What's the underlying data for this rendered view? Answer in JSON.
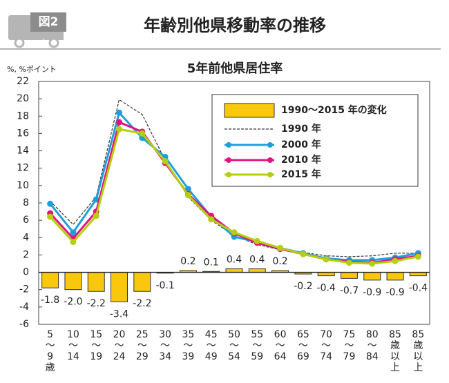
{
  "header": {
    "badge": "図2",
    "title": "年齢別他県移動率の推移"
  },
  "chart_data": {
    "type": "combo",
    "title": "5年前他県居住率",
    "y_label": "%, %ポイント",
    "categories": [
      "5\n〜\n9\n歳",
      "10\n〜\n14",
      "15\n〜\n19",
      "20\n〜\n24",
      "25\n〜\n29",
      "30\n〜\n34",
      "35\n〜\n39",
      "45\n〜\n49",
      "50\n〜\n54",
      "55\n〜\n59",
      "60\n〜\n64",
      "65\n〜\n69",
      "70\n〜\n74",
      "75\n〜\n79",
      "80\n〜\n84",
      "85\n歳\n以\n上",
      "85\n歳\n以\n上"
    ],
    "series": [
      {
        "name": "1990〜2015 年の変化",
        "type": "bar",
        "color": "#f9c80e",
        "values": [
          -1.8,
          -2.0,
          -2.2,
          -3.4,
          -2.2,
          -0.1,
          0.2,
          0.1,
          0.4,
          0.4,
          0.2,
          -0.2,
          -0.4,
          -0.7,
          -0.9,
          -0.9,
          -0.4
        ],
        "value_labels": [
          "-1.8",
          "-2.0",
          "-2.2",
          "-3.4",
          "-2.2",
          "-0.1",
          "0.2",
          "0.1",
          "0.4",
          "0.4",
          "0.2",
          "-0.2",
          "-0.4",
          "-0.7",
          "-0.9",
          "-0.9",
          "-0.4"
        ]
      },
      {
        "name": "1990 年",
        "type": "line",
        "dashed": true,
        "markers": false,
        "color": "#333333",
        "values": [
          8.2,
          5.5,
          8.7,
          19.9,
          18.2,
          12.9,
          8.7,
          6.0,
          4.2,
          3.2,
          2.6,
          2.3,
          1.9,
          1.8,
          1.9,
          2.2,
          2.2
        ]
      },
      {
        "name": "2000 年",
        "type": "line",
        "dashed": false,
        "markers": true,
        "color": "#1e9fdc",
        "values": [
          7.9,
          4.6,
          8.4,
          18.4,
          15.5,
          13.3,
          9.6,
          6.4,
          4.1,
          3.5,
          2.8,
          2.2,
          1.6,
          1.4,
          1.4,
          1.7,
          2.2
        ]
      },
      {
        "name": "2010 年",
        "type": "line",
        "dashed": false,
        "markers": true,
        "color": "#e0147f",
        "values": [
          6.8,
          3.9,
          7.0,
          17.3,
          16.2,
          12.6,
          9.0,
          6.5,
          4.5,
          3.4,
          2.7,
          2.1,
          1.5,
          1.2,
          1.1,
          1.5,
          1.9
        ]
      },
      {
        "name": "2015 年",
        "type": "line",
        "dashed": false,
        "markers": true,
        "color": "#b5cf0a",
        "values": [
          6.4,
          3.5,
          6.5,
          16.5,
          16.0,
          12.8,
          8.9,
          6.1,
          4.6,
          3.6,
          2.8,
          2.1,
          1.5,
          1.1,
          1.0,
          1.3,
          1.8
        ]
      }
    ],
    "ylim": [
      -6,
      22
    ],
    "yticks": [
      -6,
      -4,
      -2,
      0,
      2,
      4,
      6,
      8,
      10,
      12,
      14,
      16,
      18,
      20,
      22
    ],
    "grid": false,
    "legend": "top-right"
  }
}
